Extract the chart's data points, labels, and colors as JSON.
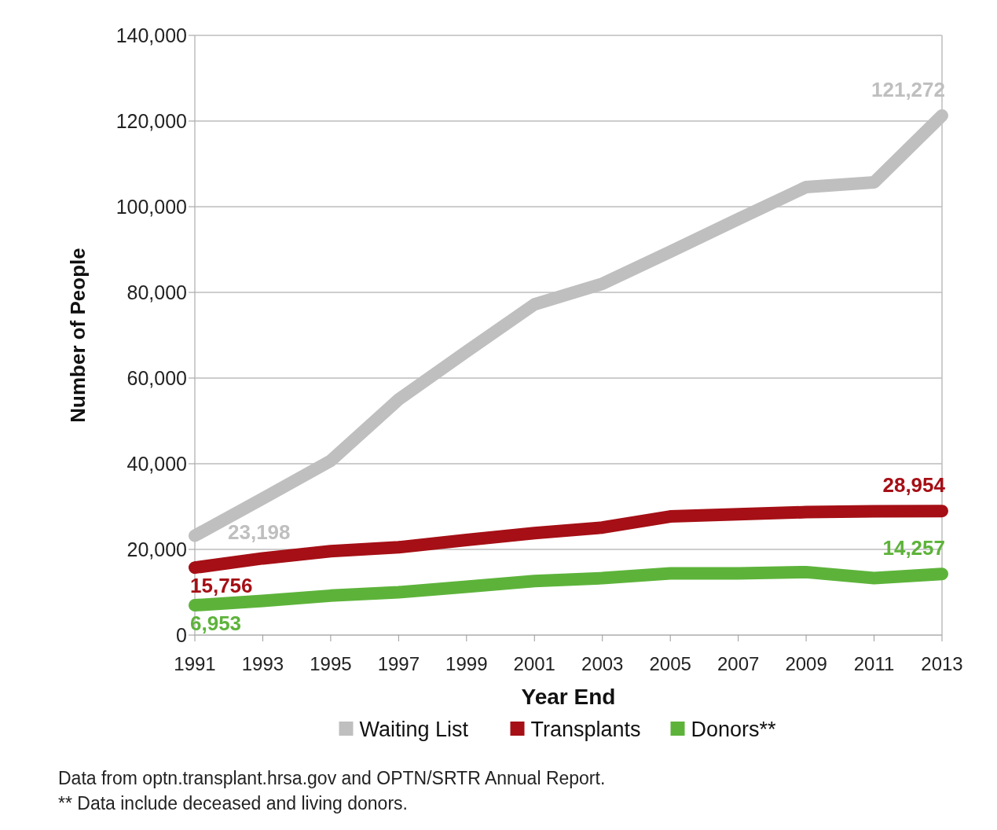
{
  "chart_data": {
    "type": "line",
    "xlabel": "Year End",
    "ylabel": "Number of People",
    "x": [
      1991,
      1993,
      1995,
      1997,
      1999,
      2001,
      2003,
      2005,
      2007,
      2009,
      2011,
      2013
    ],
    "xlim": [
      1991,
      2013
    ],
    "xticks": [
      1991,
      1993,
      1995,
      1997,
      1999,
      2001,
      2003,
      2005,
      2007,
      2009,
      2011,
      2013
    ],
    "ylim": [
      0,
      140000
    ],
    "yticks": [
      {
        "value": 0,
        "label": "0"
      },
      {
        "value": 20000,
        "label": "20,000"
      },
      {
        "value": 40000,
        "label": "40,000"
      },
      {
        "value": 60000,
        "label": "60,000"
      },
      {
        "value": 80000,
        "label": "80,000"
      },
      {
        "value": 100000,
        "label": "100,000"
      },
      {
        "value": 120000,
        "label": "120,000"
      },
      {
        "value": 140000,
        "label": "140,000"
      }
    ],
    "grid": "y",
    "legend": "bottom",
    "marker": "none",
    "line_style": "solid",
    "series": [
      {
        "name": "Waiting List",
        "color": "#bfbfbf",
        "values": [
          23198,
          31900,
          40700,
          55000,
          66200,
          77200,
          82000,
          89500,
          97100,
          104600,
          105700,
          121272
        ],
        "value_labels": [
          "23,198",
          null,
          null,
          null,
          null,
          null,
          null,
          null,
          null,
          null,
          null,
          "121,272"
        ]
      },
      {
        "name": "Transplants",
        "color": "#a50f15",
        "values": [
          15756,
          17900,
          19600,
          20500,
          22200,
          23800,
          25100,
          27700,
          28200,
          28700,
          28900,
          28954
        ],
        "value_labels": [
          "15,756",
          null,
          null,
          null,
          null,
          null,
          null,
          null,
          null,
          null,
          null,
          "28,954"
        ]
      },
      {
        "name": "Donors**",
        "color": "#5db33a",
        "values": [
          6953,
          8000,
          9200,
          10000,
          11300,
          12600,
          13300,
          14400,
          14400,
          14700,
          13300,
          14257
        ],
        "value_labels": [
          "6,953",
          null,
          null,
          null,
          null,
          null,
          null,
          null,
          null,
          null,
          null,
          "14,257"
        ]
      }
    ],
    "annotations": [
      "Data from optn.transplant.hrsa.gov and OPTN/SRTR Annual Report.",
      "** Data include deceased and living donors."
    ]
  }
}
